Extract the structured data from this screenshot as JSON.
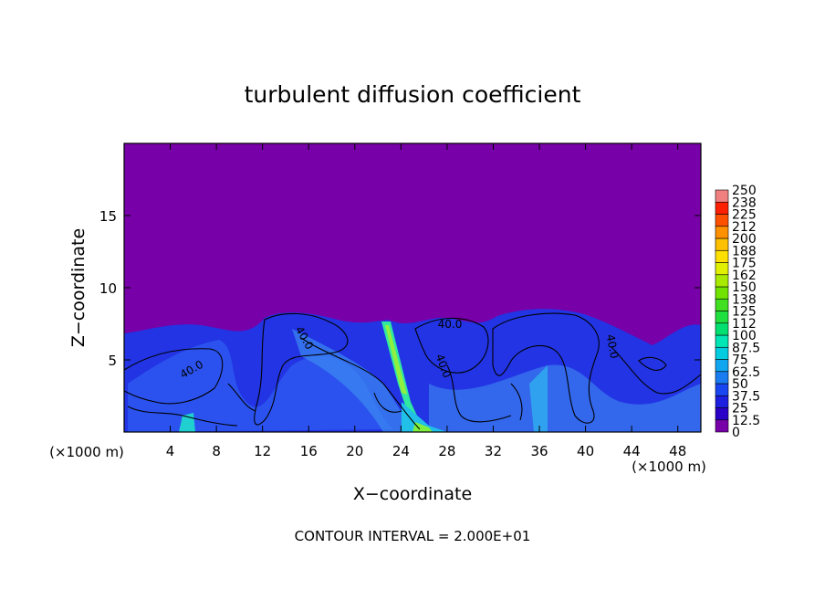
{
  "chart_data": {
    "type": "contour",
    "title": "turbulent diffusion coefficient",
    "x_label": "X−coordinate",
    "y_label": "Z−coordinate",
    "x_unit_label": "(×1000 m)",
    "y_unit_label": "(×1000 m)",
    "footer": "CONTOUR INTERVAL = 2.000E+01",
    "xlim": [
      0,
      50
    ],
    "xticks": [
      4,
      8,
      12,
      16,
      20,
      24,
      28,
      32,
      36,
      40,
      44,
      48
    ],
    "ylim": [
      0,
      20
    ],
    "yticks": [
      5,
      10,
      15
    ],
    "contour_labels": [
      "40.0",
      "40.0",
      "40.0",
      "40.0",
      "40.0"
    ],
    "colorbar": {
      "levels": [
        0,
        12.5,
        25,
        37.5,
        50,
        62.5,
        75,
        87.5,
        100,
        112,
        125,
        138,
        150,
        162,
        175,
        188,
        200,
        212,
        225,
        238,
        250
      ],
      "colors": [
        "#7800a8",
        "#2a00c8",
        "#1c1ee0",
        "#1846f0",
        "#1a7cf0",
        "#10a6f0",
        "#00cce0",
        "#00e6b4",
        "#00e070",
        "#20e040",
        "#40e020",
        "#70e400",
        "#a8ea00",
        "#e0f000",
        "#ffe000",
        "#ffc000",
        "#ff9000",
        "#ff5000",
        "#ff2000",
        "#f08080"
      ]
    }
  }
}
